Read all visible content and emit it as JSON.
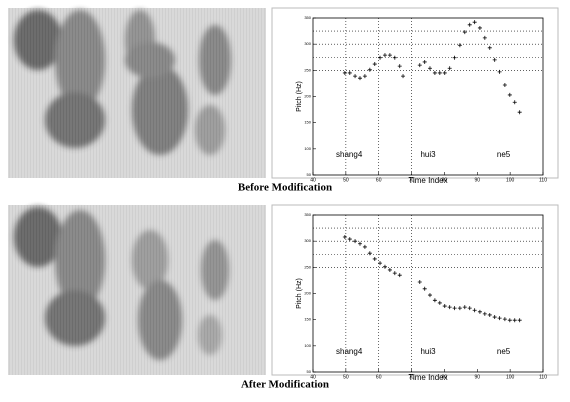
{
  "chart_data": [
    {
      "type": "scatter",
      "caption": "Before Modification",
      "x_label": "Time Index",
      "y_label": "Pitch (Hz)",
      "xlim": [
        40,
        110
      ],
      "xticks": [
        40,
        50,
        60,
        70,
        80,
        90,
        100,
        110
      ],
      "ylim": [
        50,
        350
      ],
      "yticks": [
        50,
        100,
        150,
        200,
        250,
        300,
        350
      ],
      "ref_x": [
        50,
        60,
        70
      ],
      "ref_y": [
        250,
        275,
        300,
        325
      ],
      "color": "#000000",
      "annotations": [
        {
          "text": "shang4",
          "x": 51,
          "y": 88
        },
        {
          "text": "hui3",
          "x": 75,
          "y": 88
        },
        {
          "text": "ne5",
          "x": 98,
          "y": 88
        }
      ],
      "x": [
        49.7,
        51.2,
        52.8,
        54.3,
        55.8,
        57.3,
        58.8,
        60.4,
        61.9,
        63.4,
        64.9,
        66.4,
        67.4,
        72.5,
        74.0,
        75.6,
        77.1,
        78.6,
        80.1,
        81.6,
        83.1,
        84.7,
        86.2,
        87.7,
        89.2,
        90.8,
        92.3,
        93.8,
        95.3,
        96.8,
        98.4,
        99.9,
        101.4,
        102.9
      ],
      "values": [
        245,
        245,
        239,
        235,
        239,
        251,
        262,
        274,
        279,
        279,
        274,
        258,
        239,
        260,
        266,
        254,
        245,
        245,
        245,
        254,
        274,
        298,
        323,
        337,
        342,
        331,
        312,
        293,
        270,
        247,
        222,
        203,
        189,
        170
      ]
    },
    {
      "type": "scatter",
      "caption": "After  Modification",
      "x_label": "Time Index",
      "y_label": "Pitch (Hz)",
      "xlim": [
        40,
        110
      ],
      "xticks": [
        40,
        50,
        60,
        70,
        80,
        90,
        100,
        110
      ],
      "ylim": [
        50,
        350
      ],
      "yticks": [
        50,
        100,
        150,
        200,
        250,
        300,
        350
      ],
      "ref_x": [
        50,
        60,
        70
      ],
      "ref_y": [
        250,
        275,
        300,
        325
      ],
      "color": "#000000",
      "annotations": [
        {
          "text": "shang4",
          "x": 51,
          "y": 88
        },
        {
          "text": "hui3",
          "x": 75,
          "y": 88
        },
        {
          "text": "ne5",
          "x": 98,
          "y": 88
        }
      ],
      "x": [
        49.7,
        51.2,
        52.8,
        54.3,
        55.8,
        57.3,
        58.8,
        60.4,
        61.9,
        63.4,
        64.9,
        66.4,
        72.5,
        74.0,
        75.6,
        77.1,
        78.6,
        80.1,
        81.6,
        83.1,
        84.7,
        86.2,
        87.7,
        89.2,
        90.8,
        92.3,
        93.8,
        95.3,
        96.8,
        98.4,
        99.9,
        101.4,
        102.9
      ],
      "values": [
        308,
        304,
        300,
        295,
        289,
        277,
        266,
        258,
        251,
        245,
        239,
        235,
        222,
        209,
        197,
        187,
        182,
        176,
        174,
        172,
        172,
        174,
        172,
        168,
        165,
        161,
        159,
        155,
        153,
        151,
        149,
        149,
        149
      ]
    }
  ]
}
